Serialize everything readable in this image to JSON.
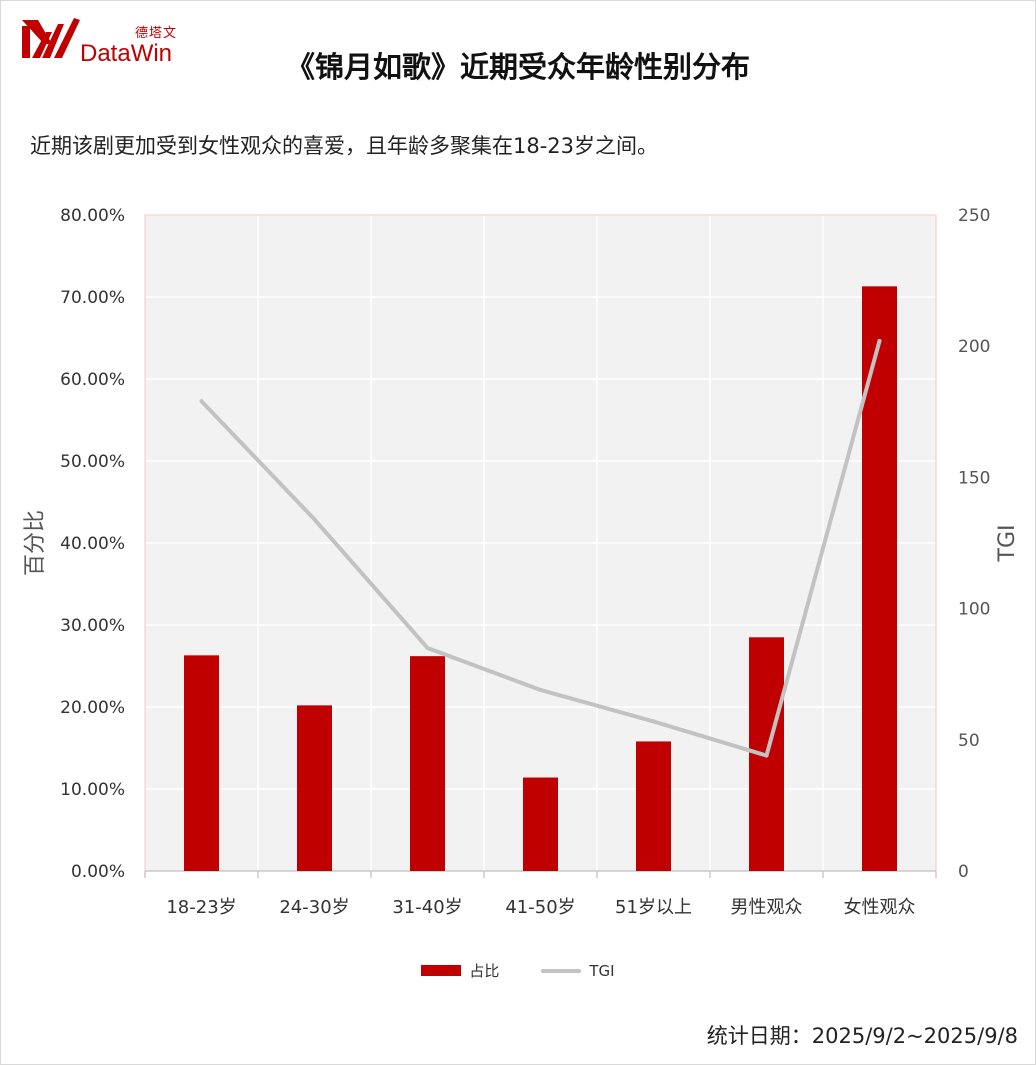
{
  "brand": {
    "name_cn": "德塔文",
    "name_en": "DataWin",
    "color": "#c00000"
  },
  "title": "《锦月如歌》近期受众年龄性别分布",
  "subtitle": "近期该剧更加受到女性观众的喜爱，且年龄多聚集在18-23岁之间。",
  "footer": "统计日期：2025/9/2~2025/9/8",
  "chart_data": {
    "type": "bar",
    "categories": [
      "18-23岁",
      "24-30岁",
      "31-40岁",
      "41-50岁",
      "51岁以上",
      "男性观众",
      "女性观众"
    ],
    "series": [
      {
        "name": "占比",
        "type": "bar",
        "axis": "left",
        "color": "#c00000",
        "values": [
          26.3,
          20.2,
          26.2,
          11.4,
          15.8,
          28.5,
          71.3
        ]
      },
      {
        "name": "TGI",
        "type": "line",
        "axis": "right",
        "color": "#c2c2c2",
        "values": [
          179,
          134,
          85,
          69,
          57,
          44,
          202
        ]
      }
    ],
    "ylabel": "百分比",
    "y2label": "TGI",
    "ylim": [
      0,
      80
    ],
    "y2lim": [
      0,
      250
    ],
    "yticks": [
      "0.00%",
      "10.00%",
      "20.00%",
      "30.00%",
      "40.00%",
      "50.00%",
      "60.00%",
      "70.00%",
      "80.00%"
    ],
    "y2ticks": [
      "0",
      "50",
      "100",
      "150",
      "200",
      "250"
    ],
    "grid": true,
    "legend": "bottom-center",
    "plot_background": "#f2f2f2"
  }
}
